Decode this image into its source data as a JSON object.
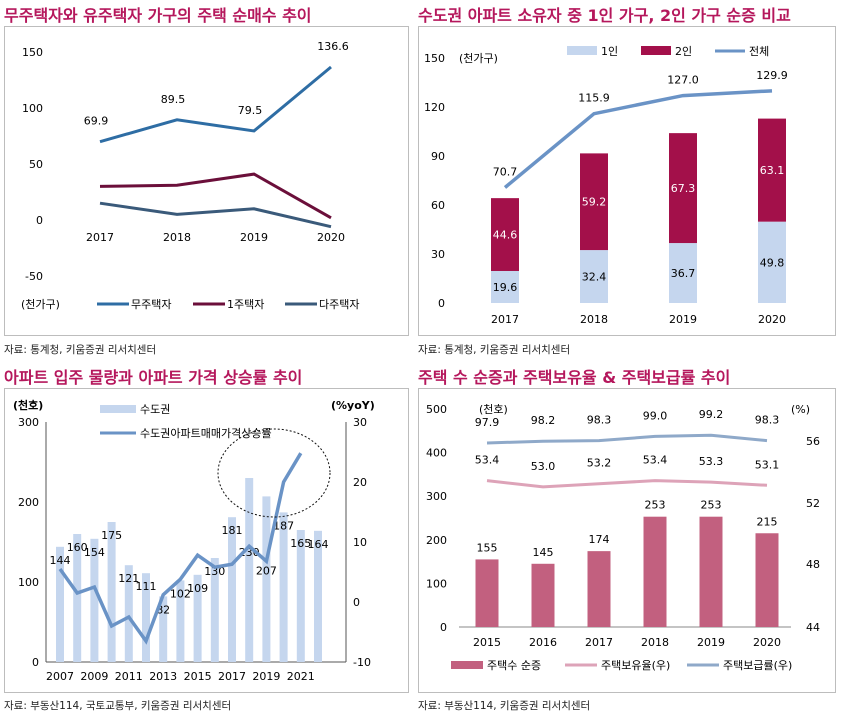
{
  "titles": {
    "p1": "무주택자와 유주택자 가구의 주택 순매수 추이",
    "p2": "수도권 아파트 소유자 중 1인 가구, 2인 가구 순증 비교",
    "p3": "아파트 입주 물량과 아파트 가격 상승률 추이",
    "p4": "주택 수 순증과 주택보유율 & 주택보급률 추이"
  },
  "sources": {
    "p1": "자료: 통계청, 키움증권 리서치센터",
    "p2": "자료: 통계청, 키움증권 리서치센터",
    "p3": "자료: 부동산114, 국토교통부, 키움증권 리서치센터",
    "p4": "자료: 부동산114, 키움증권 리서치센터"
  },
  "chart_data": [
    {
      "type": "line",
      "unit": "(천가구)",
      "x": [
        "2017",
        "2018",
        "2019",
        "2020"
      ],
      "ylim": [
        -50,
        150
      ],
      "yticks": [
        -50,
        0,
        50,
        100,
        150
      ],
      "series": [
        {
          "name": "무주택자",
          "color": "#2e6da4",
          "values": [
            69.9,
            89.5,
            79.5,
            136.6
          ],
          "labels": [
            "69.9",
            "89.5",
            "79.5",
            "136.6"
          ]
        },
        {
          "name": "1주택자",
          "color": "#6b0f3a",
          "values": [
            30,
            31,
            41,
            2
          ]
        },
        {
          "name": "다주택자",
          "color": "#3a5a7a",
          "values": [
            15,
            5,
            10,
            -6
          ]
        }
      ]
    },
    {
      "type": "bar",
      "unit": "(천가구)",
      "categories": [
        "2017",
        "2018",
        "2019",
        "2020"
      ],
      "ylim": [
        0,
        150
      ],
      "yticks": [
        0,
        30,
        60,
        90,
        120,
        150
      ],
      "series": [
        {
          "name": "1인",
          "color": "#c5d6ee",
          "values": [
            19.6,
            32.4,
            36.7,
            49.8
          ],
          "labels": [
            "19.6",
            "32.4",
            "36.7",
            "49.8"
          ]
        },
        {
          "name": "2인",
          "color": "#a3104a",
          "values": [
            44.6,
            59.2,
            67.3,
            63.1
          ],
          "labels": [
            "44.6",
            "59.2",
            "67.3",
            "63.1"
          ]
        },
        {
          "name": "전체",
          "type": "line",
          "color": "#6a93c6",
          "values": [
            70.7,
            115.9,
            127.0,
            129.9
          ],
          "labels": [
            "70.7",
            "115.9",
            "127.0",
            "129.9"
          ]
        }
      ]
    },
    {
      "type": "bar",
      "left_unit": "(천호)",
      "right_unit": "(%yoY)",
      "x": [
        2007,
        2008,
        2009,
        2010,
        2011,
        2012,
        2013,
        2014,
        2015,
        2016,
        2017,
        2018,
        2019,
        2020,
        2021,
        2022
      ],
      "xticks": [
        "2007",
        "2009",
        "2011",
        "2013",
        "2015",
        "2017",
        "2019",
        "2021"
      ],
      "ylim_left": [
        0,
        300
      ],
      "yticks_left": [
        0,
        100,
        200,
        300
      ],
      "ylim_right": [
        -10,
        30
      ],
      "yticks_right": [
        -10,
        0,
        10,
        20,
        30
      ],
      "series": [
        {
          "name": "수도권",
          "color": "#c5d6ee",
          "values": [
            144,
            160,
            154,
            175,
            121,
            111,
            82,
            102,
            109,
            130,
            181,
            230,
            207,
            187,
            165,
            164
          ],
          "labels": [
            "144",
            "160",
            "154",
            "175",
            "121",
            "111",
            "82",
            "102",
            "109",
            "130",
            "181",
            "230",
            "207",
            "187",
            "165",
            "164"
          ]
        },
        {
          "name": "수도권아파트매매가격상승률",
          "type": "line",
          "color": "#6a93c6",
          "axis": "right",
          "values": [
            5.5,
            1.5,
            2.5,
            -4,
            -2.5,
            -6.5,
            1.2,
            3.8,
            7.8,
            5.8,
            6.3,
            9.3,
            6.8,
            20,
            24.8,
            null
          ]
        }
      ]
    },
    {
      "type": "bar",
      "left_unit": "(천호)",
      "right_unit": "(%)",
      "categories": [
        "2015",
        "2016",
        "2017",
        "2018",
        "2019",
        "2020"
      ],
      "ylim_left": [
        0,
        500
      ],
      "yticks_left": [
        0,
        100,
        200,
        300,
        400,
        500
      ],
      "ylim_right": [
        44,
        58
      ],
      "yticks_right": [
        44,
        48,
        52,
        56
      ],
      "series": [
        {
          "name": "주택수 순증",
          "color": "#c2607f",
          "values": [
            155,
            145,
            174,
            253,
            253,
            215
          ],
          "labels": [
            "155",
            "145",
            "174",
            "253",
            "253",
            "215"
          ]
        },
        {
          "name": "주택보유율(우)",
          "type": "line",
          "color": "#dda3b8",
          "axis": "right",
          "values": [
            53.4,
            53.0,
            53.2,
            53.4,
            53.3,
            53.1
          ],
          "labels": [
            "53.4",
            "53.0",
            "53.2",
            "53.4",
            "53.3",
            "53.1"
          ]
        },
        {
          "name": "주택보급률(우)",
          "type": "line",
          "color": "#8fa9c9",
          "axis": "right",
          "values": [
            97.9,
            98.2,
            98.3,
            99.0,
            99.2,
            98.3
          ],
          "labels": [
            "97.9",
            "98.2",
            "98.3",
            "99.0",
            "99.2",
            "98.3"
          ]
        }
      ]
    }
  ]
}
